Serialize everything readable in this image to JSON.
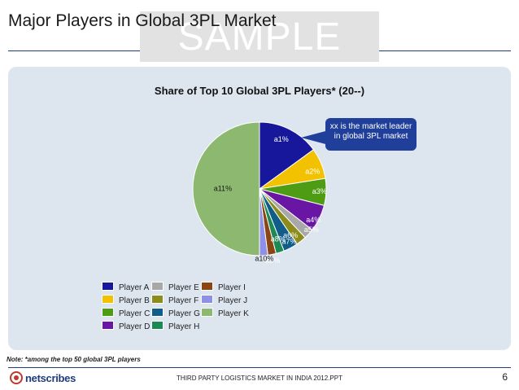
{
  "slide": {
    "title": "Major Players in Global 3PL Market",
    "watermark": "SAMPLE",
    "note": "Note: *among the top 50 global 3PL players",
    "footer": "THIRD PARTY LOGISTICS MARKET IN INDIA 2012.PPT",
    "page_number": "6",
    "logo": "netscribes"
  },
  "callout": {
    "text": "xx is the market leader in global 3PL market"
  },
  "colors": {
    "panel": "#dde5ef",
    "accent": "#1f3b7a",
    "callout": "#1f3f9a"
  },
  "chart_data": {
    "type": "pie",
    "title": "Share of Top 10 Global 3PL Players* (20--)",
    "legend_position": "bottom",
    "slices": [
      {
        "name": "Player A",
        "label": "a1%",
        "value": 15.0,
        "color": "#17179b"
      },
      {
        "name": "Player B",
        "label": "a2%",
        "value": 7.5,
        "color": "#f2c200"
      },
      {
        "name": "Player C",
        "label": "a3%",
        "value": 6.5,
        "color": "#4e9c13"
      },
      {
        "name": "Player D",
        "label": "a4%",
        "value": 6.5,
        "color": "#6a16a5"
      },
      {
        "name": "Player E",
        "label": "a5%",
        "value": 2.5,
        "color": "#a8a8a8"
      },
      {
        "name": "Player F",
        "label": "a6%",
        "value": 2.5,
        "color": "#8b8c1a"
      },
      {
        "name": "Player G",
        "label": "a7%",
        "value": 3.5,
        "color": "#0f5d88"
      },
      {
        "name": "Player H",
        "label": "a8%",
        "value": 2.0,
        "color": "#1d8a55"
      },
      {
        "name": "Player I",
        "label": "a9%",
        "value": 2.0,
        "color": "#8b4513"
      },
      {
        "name": "Player J",
        "label": "a10%",
        "value": 2.0,
        "color": "#8e8fe6"
      },
      {
        "name": "Player K",
        "label": "a11%",
        "value": 50.0,
        "color": "#8cb870"
      }
    ]
  }
}
